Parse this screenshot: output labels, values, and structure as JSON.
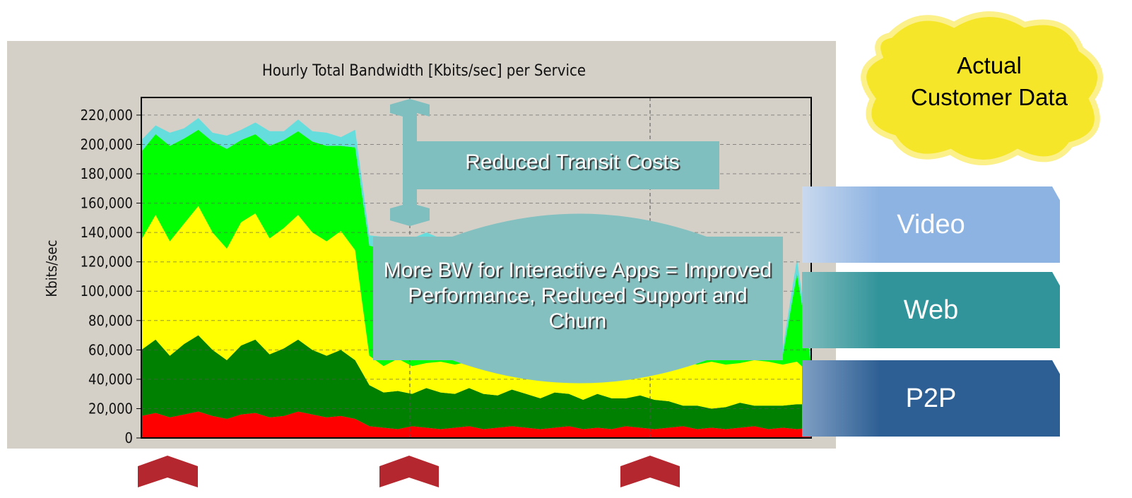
{
  "chart_data": {
    "type": "stacked_area",
    "title": "Hourly Total Bandwidth [Kbits/sec] per Service",
    "y_label": "Kbits/sec",
    "ylim": [
      0,
      232000
    ],
    "yticks": [
      0,
      {
        "value": 20000,
        "label": "20,000"
      },
      {
        "value": 40000,
        "label": "40,000"
      },
      {
        "value": 60000,
        "label": "60,000"
      },
      {
        "value": 80000,
        "label": "80,000"
      },
      {
        "value": 100000,
        "label": "100,000"
      },
      {
        "value": 120000,
        "label": "120,000"
      },
      {
        "value": 140000,
        "label": "140,000"
      },
      {
        "value": 160000,
        "label": "160,000"
      },
      {
        "value": 180000,
        "label": "180,000"
      },
      {
        "value": 200000,
        "label": "200,000"
      },
      {
        "value": 220000,
        "label": "220,000"
      }
    ],
    "grid": true,
    "series": [
      {
        "color": "#ff0000",
        "values": [
          15000,
          17000,
          14000,
          16000,
          18000,
          15000,
          13000,
          16000,
          17000,
          14000,
          15000,
          18000,
          16000,
          14000,
          15000,
          13000,
          8000,
          7000,
          6000,
          8000,
          7000,
          6000,
          7000,
          8000,
          6000,
          7000,
          8000,
          7000,
          6000,
          7000,
          8000,
          6000,
          7000,
          6000,
          8000,
          7000,
          6000,
          7000,
          8000,
          6000,
          7000,
          6000,
          7000,
          8000,
          6000,
          7000,
          6000,
          7000
        ]
      },
      {
        "color": "#008000",
        "values": [
          45000,
          50000,
          42000,
          48000,
          52000,
          45000,
          40000,
          47000,
          50000,
          43000,
          46000,
          49000,
          44000,
          42000,
          45000,
          40000,
          28000,
          24000,
          26000,
          22000,
          27000,
          25000,
          23000,
          26000,
          24000,
          22000,
          25000,
          23000,
          21000,
          24000,
          22000,
          20000,
          23000,
          21000,
          19000,
          22000,
          20000,
          18000,
          14000,
          16000,
          13000,
          15000,
          17000,
          14000,
          16000,
          15000,
          17000,
          16000
        ]
      },
      {
        "color": "#ffff00",
        "values": [
          75000,
          85000,
          78000,
          82000,
          88000,
          80000,
          76000,
          84000,
          86000,
          79000,
          82000,
          85000,
          80000,
          78000,
          81000,
          75000,
          20000,
          18000,
          22000,
          19000,
          17000,
          21000,
          20000,
          18000,
          22000,
          19000,
          21000,
          20000,
          23000,
          19000,
          22000,
          24000,
          20000,
          23000,
          25000,
          21000,
          24000,
          27000,
          30000,
          28000,
          32000,
          29000,
          27000,
          31000,
          30000,
          28000,
          29000,
          20000
        ]
      },
      {
        "color": "#00ff00",
        "values": [
          60000,
          55000,
          65000,
          58000,
          52000,
          62000,
          68000,
          56000,
          54000,
          63000,
          60000,
          57000,
          62000,
          65000,
          58000,
          70000,
          75000,
          80000,
          70000,
          78000,
          82000,
          76000,
          80000,
          74000,
          78000,
          81000,
          75000,
          79000,
          73000,
          76000,
          74000,
          70000,
          72000,
          68000,
          66000,
          64000,
          62000,
          58000,
          5000,
          6000,
          4000,
          5000,
          6000,
          5000,
          4000,
          6000,
          60000,
          8000
        ]
      },
      {
        "color": "#66dddd",
        "values": [
          8000,
          6000,
          9000,
          7000,
          8000,
          6000,
          9000,
          7000,
          8000,
          10000,
          6000,
          8000,
          7000,
          9000,
          6000,
          12000,
          7000,
          8000,
          6000,
          9000,
          7000,
          8000,
          6000,
          9000,
          7000,
          8000,
          6000,
          9000,
          7000,
          8000,
          6000,
          7000,
          8000,
          6000,
          7000,
          6000,
          8000,
          7000,
          4000,
          5000,
          3000,
          4000,
          5000,
          3000,
          4000,
          5000,
          10000,
          4000
        ]
      }
    ],
    "annotations": {
      "cloud": "Actual Customer Data",
      "transit": "Reduced Transit Costs",
      "interactive": "More BW for Interactive Apps = Improved Performance, Reduced Support and Churn",
      "tabs": [
        "Video",
        "Web",
        "P2P"
      ]
    }
  }
}
